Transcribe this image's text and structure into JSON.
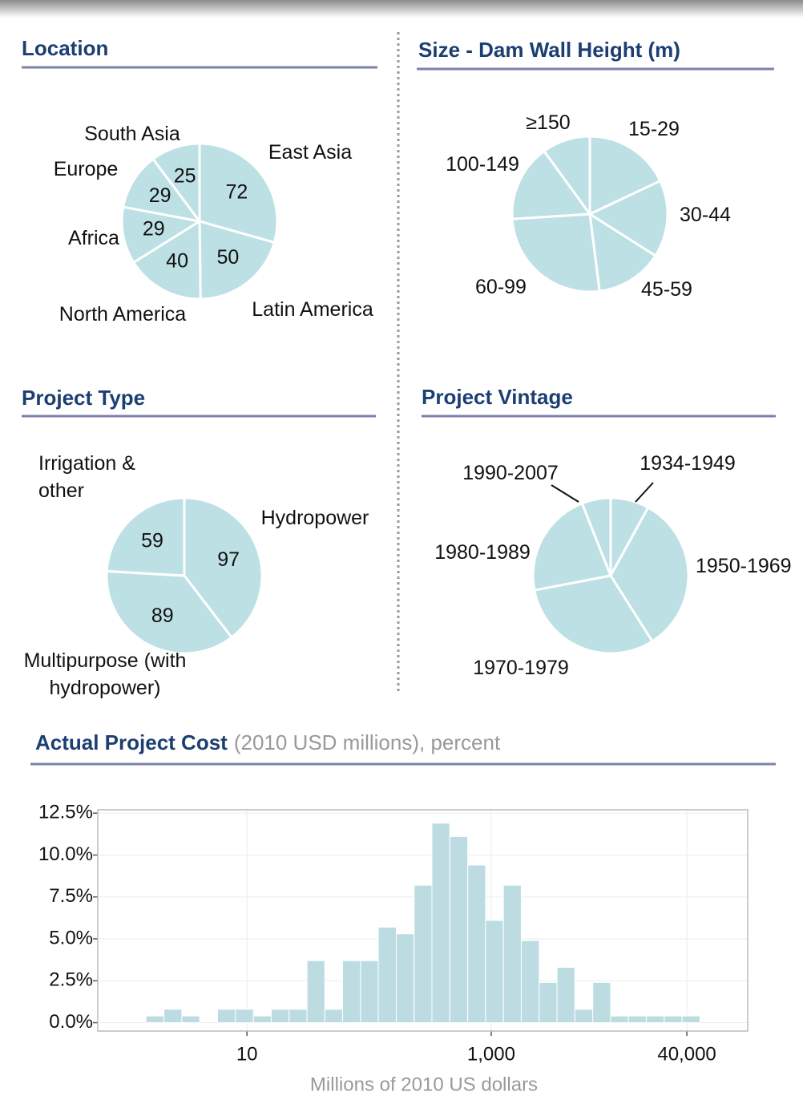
{
  "chart_data": [
    {
      "type": "pie",
      "title": "Location",
      "categories": [
        "East Asia",
        "Latin America",
        "North America",
        "Africa",
        "Europe",
        "South Asia"
      ],
      "values": [
        72,
        50,
        40,
        29,
        29,
        25
      ],
      "color": "#bde0e4"
    },
    {
      "type": "pie",
      "title": "Size - Dam Wall Height (m)",
      "categories": [
        "15-29",
        "30-44",
        "45-59",
        "60-99",
        "100-149",
        "≥150"
      ],
      "values": [
        18,
        16,
        14,
        26,
        16,
        10
      ],
      "color": "#bde0e4"
    },
    {
      "type": "pie",
      "title": "Project Type",
      "categories": [
        "Hydropower",
        "Multipurpose (with hydropower)",
        "Irrigation & other"
      ],
      "values": [
        97,
        89,
        59
      ],
      "color": "#bde0e4"
    },
    {
      "type": "pie",
      "title": "Project Vintage",
      "categories": [
        "1934-1949",
        "1950-1969",
        "1970-1979",
        "1980-1989",
        "1990-2007"
      ],
      "values": [
        8,
        33,
        31,
        22,
        6
      ],
      "color": "#bde0e4"
    },
    {
      "type": "histogram",
      "title": "Actual Project Cost",
      "subtitle": "(2010 USD millions), percent",
      "x_label": "Millions of 2010 US dollars",
      "bins": [
        1.49,
        2.09,
        2.93,
        4.1,
        5.74,
        8.05,
        11.3,
        15.8,
        22.1,
        31,
        43.4,
        60.7,
        85.1,
        119,
        167,
        234,
        327,
        458,
        642,
        899,
        1259,
        1762,
        2472,
        3459,
        4842,
        6792,
        9506,
        13300,
        18620,
        26120,
        36560,
        51170
      ],
      "values": [
        0.4,
        0.8,
        0.4,
        0,
        0.8,
        0.8,
        0.4,
        0.8,
        0.8,
        3.7,
        0.8,
        3.7,
        3.7,
        5.7,
        5.3,
        8.2,
        11.9,
        11.1,
        9.4,
        6.1,
        8.2,
        4.9,
        2.4,
        3.3,
        0.8,
        2.4,
        0.4,
        0.4,
        0.4,
        0.4,
        0.4
      ],
      "color": "#bcdce2",
      "x_log": true,
      "xlim": [
        0.6,
        126000
      ],
      "xticks": [
        10,
        {
          "value": 1000,
          "label": "1,000"
        },
        {
          "value": 40000,
          "label": "40,000"
        }
      ],
      "ylim": [
        -0.5,
        12.7
      ],
      "yticks": [
        {
          "value": 0,
          "label": "0.0%"
        },
        {
          "value": 2.5,
          "label": "2.5%"
        },
        {
          "value": 5,
          "label": "5.0%"
        },
        {
          "value": 7.5,
          "label": "7.5%"
        },
        {
          "value": 10,
          "label": "10.0%"
        },
        {
          "value": 12.5,
          "label": "12.5%"
        }
      ],
      "grid": true
    }
  ]
}
